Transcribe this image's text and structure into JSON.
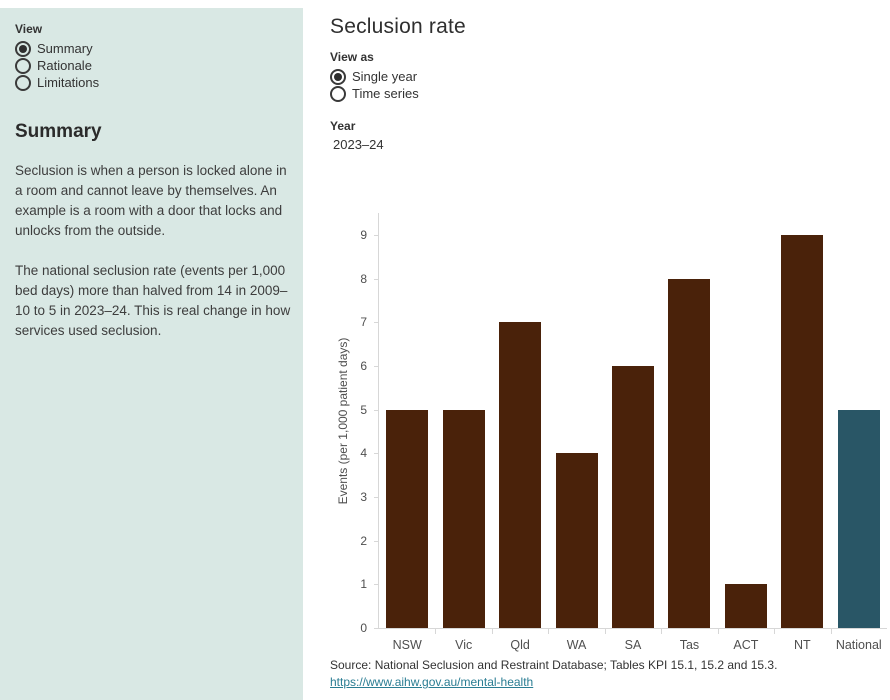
{
  "sidebar": {
    "view_label": "View",
    "options": [
      {
        "label": "Summary",
        "selected": true
      },
      {
        "label": "Rationale",
        "selected": false
      },
      {
        "label": "Limitations",
        "selected": false
      }
    ],
    "heading": "Summary",
    "paragraphs": [
      "Seclusion is when a person is locked alone in a room and cannot leave by themselves. An example is a room with a door that locks and unlocks from the outside.",
      "The national seclusion rate (events per 1,000 bed days) more than halved from 14 in 2009–10 to 5 in 2023–24. This is real change in how services used seclusion."
    ]
  },
  "main": {
    "title": "Seclusion rate",
    "view_as_label": "View as",
    "view_as_options": [
      {
        "label": "Single year",
        "selected": true
      },
      {
        "label": "Time series",
        "selected": false
      }
    ],
    "year_label": "Year",
    "year_value": "2023–24",
    "source_text": "Source: National Seclusion and Restraint Database; Tables KPI 15.1, 15.2 and 15.3.",
    "source_link": "https://www.aihw.gov.au/mental-health"
  },
  "chart_data": {
    "type": "bar",
    "title": "",
    "categories": [
      "NSW",
      "Vic",
      "Qld",
      "WA",
      "SA",
      "Tas",
      "ACT",
      "NT",
      "National"
    ],
    "values": [
      5,
      5,
      7,
      4,
      6,
      8,
      1,
      9,
      5
    ],
    "bar_colors": [
      "#4A220A",
      "#4A220A",
      "#4A220A",
      "#4A220A",
      "#4A220A",
      "#4A220A",
      "#4A220A",
      "#4A220A",
      "#295666"
    ],
    "xlabel": "",
    "ylabel": "Events (per 1,000 patient days)",
    "ylim": [
      0,
      9
    ],
    "yticks": [
      0,
      1,
      2,
      3,
      4,
      5,
      6,
      7,
      8,
      9
    ],
    "grid": false,
    "legend": "none"
  },
  "colors": {
    "sidebar_bg": "#D9E8E4",
    "bar_state": "#4A220A",
    "bar_national": "#295666",
    "link": "#2A7D93",
    "axis_line": "#D7D7D7",
    "text": "#333333"
  }
}
